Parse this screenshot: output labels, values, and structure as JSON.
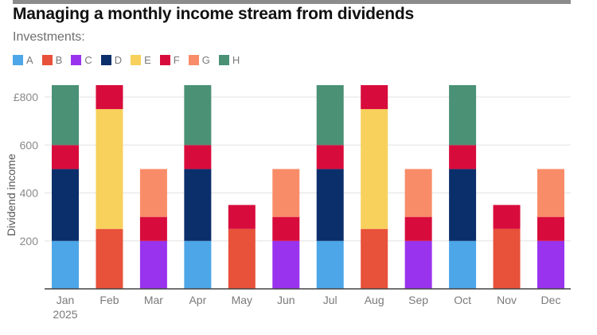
{
  "chart_data": {
    "type": "bar",
    "stacked": true,
    "title": "Managing a monthly income stream from dividends",
    "subtitle": "Investments:",
    "ylabel": "Dividend income",
    "xlabel": "",
    "ylim": [
      0,
      850
    ],
    "yticks": [
      200,
      400,
      600,
      800
    ],
    "ytick_labels": [
      "200",
      "400",
      "600",
      "£800"
    ],
    "grid": true,
    "legend_position": "top-left",
    "categories": [
      "Jan",
      "Feb",
      "Mar",
      "Apr",
      "May",
      "Jun",
      "Jul",
      "Aug",
      "Sep",
      "Oct",
      "Nov",
      "Dec"
    ],
    "first_category_sublabel": "2025",
    "series": [
      {
        "name": "A",
        "color": "#4ca6e8",
        "values": [
          200,
          0,
          0,
          200,
          0,
          0,
          200,
          0,
          0,
          200,
          0,
          0
        ]
      },
      {
        "name": "B",
        "color": "#e8513a",
        "values": [
          0,
          250,
          0,
          0,
          250,
          0,
          0,
          250,
          0,
          0,
          250,
          0
        ]
      },
      {
        "name": "C",
        "color": "#9933ee",
        "values": [
          0,
          0,
          200,
          0,
          0,
          200,
          0,
          0,
          200,
          0,
          0,
          200
        ]
      },
      {
        "name": "D",
        "color": "#0b2f6b",
        "values": [
          300,
          0,
          0,
          300,
          0,
          0,
          300,
          0,
          0,
          300,
          0,
          0
        ]
      },
      {
        "name": "E",
        "color": "#f7d15c",
        "values": [
          0,
          500,
          0,
          0,
          0,
          0,
          0,
          500,
          0,
          0,
          0,
          0
        ]
      },
      {
        "name": "F",
        "color": "#d80c3c",
        "values": [
          100,
          100,
          100,
          100,
          100,
          100,
          100,
          100,
          100,
          100,
          100,
          100
        ]
      },
      {
        "name": "G",
        "color": "#f98c68",
        "values": [
          0,
          0,
          200,
          0,
          0,
          200,
          0,
          0,
          200,
          0,
          0,
          200
        ]
      },
      {
        "name": "H",
        "color": "#4a9175",
        "values": [
          250,
          0,
          0,
          250,
          0,
          0,
          250,
          0,
          0,
          250,
          0,
          0
        ]
      }
    ]
  }
}
